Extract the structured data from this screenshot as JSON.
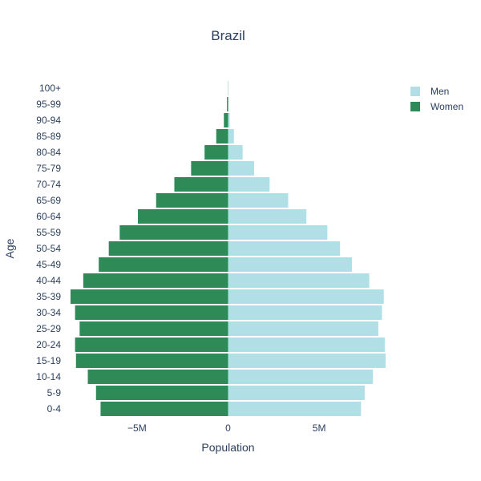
{
  "chart_data": {
    "type": "bar",
    "orientation": "horizontal",
    "barmode": "relative",
    "title": "Brazil",
    "xlabel": "Population",
    "ylabel": "Age",
    "xlim": [
      -9000000,
      9000000
    ],
    "x_ticks": [
      {
        "value": -5000000,
        "label": "−5M"
      },
      {
        "value": 0,
        "label": "0"
      },
      {
        "value": 5000000,
        "label": "5M"
      }
    ],
    "grid": false,
    "legend_position": "top-right",
    "categories": [
      "0-4",
      "5-9",
      "10-14",
      "15-19",
      "20-24",
      "25-29",
      "30-34",
      "35-39",
      "40-44",
      "45-49",
      "50-54",
      "55-59",
      "60-64",
      "65-69",
      "70-74",
      "75-79",
      "80-84",
      "85-89",
      "90-94",
      "95-99",
      "100+"
    ],
    "series": [
      {
        "name": "Men",
        "color": "#b0e0e6",
        "values": [
          7300000,
          7500000,
          7950000,
          8650000,
          8600000,
          8250000,
          8450000,
          8550000,
          7750000,
          6800000,
          6150000,
          5450000,
          4300000,
          3300000,
          2280000,
          1430000,
          800000,
          320000,
          90000,
          25000,
          5000
        ]
      },
      {
        "name": "Women",
        "color": "#2e8b57",
        "values": [
          -7000000,
          -7250000,
          -7700000,
          -8350000,
          -8400000,
          -8150000,
          -8400000,
          -8650000,
          -7950000,
          -7100000,
          -6550000,
          -5950000,
          -4950000,
          -3950000,
          -2950000,
          -2030000,
          -1290000,
          -650000,
          -230000,
          -60000,
          -10000
        ]
      }
    ]
  }
}
